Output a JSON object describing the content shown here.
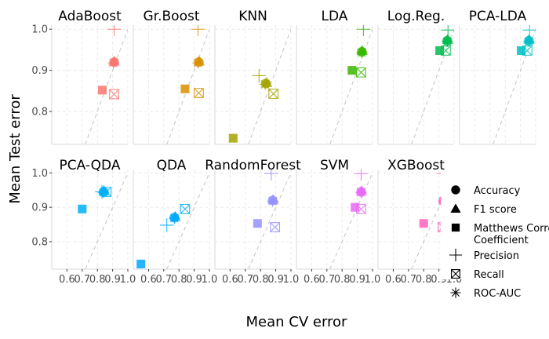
{
  "chart_data": {
    "type": "scatter",
    "xlabel": "Mean CV error",
    "ylabel": "Mean Test error",
    "xlim": [
      0.5,
      1.0
    ],
    "ylim": [
      0.72,
      1.01
    ],
    "x_ticks": [
      "0.6",
      "0.7",
      "0.8",
      "0.9",
      "1.0"
    ],
    "y_ticks": [
      "0.8",
      "0.9",
      "1.0"
    ],
    "grid": true,
    "reference_line": "dashed diagonal y = x",
    "legend_position": "right",
    "metrics": [
      {
        "name": "Accuracy",
        "shape": "circle"
      },
      {
        "name": "F1 score",
        "shape": "triangle"
      },
      {
        "name": "Matthews Correlation\nCoefficient",
        "shape": "square"
      },
      {
        "name": "Precision",
        "shape": "plus"
      },
      {
        "name": "Recall",
        "shape": "square-cross"
      },
      {
        "name": "ROC-AUC",
        "shape": "asterisk"
      }
    ],
    "panels": [
      {
        "label": "AdaBoost",
        "color": "#f8766d",
        "points": [
          {
            "metric": "Accuracy",
            "x": 0.91,
            "y": 0.92
          },
          {
            "metric": "F1 score",
            "x": 0.91,
            "y": 0.922
          },
          {
            "metric": "Matthews Correlation\nCoefficient",
            "x": 0.832,
            "y": 0.852
          },
          {
            "metric": "Precision",
            "x": 0.91,
            "y": 1.0
          },
          {
            "metric": "Recall",
            "x": 0.91,
            "y": 0.842
          },
          {
            "metric": "ROC-AUC",
            "x": 0.905,
            "y": 0.918
          }
        ]
      },
      {
        "label": "Gr.Boost",
        "color": "#d89000",
        "points": [
          {
            "metric": "Accuracy",
            "x": 0.93,
            "y": 0.92
          },
          {
            "metric": "F1 score",
            "x": 0.932,
            "y": 0.922
          },
          {
            "metric": "Matthews Correlation\nCoefficient",
            "x": 0.84,
            "y": 0.855
          },
          {
            "metric": "Precision",
            "x": 0.925,
            "y": 1.0
          },
          {
            "metric": "Recall",
            "x": 0.93,
            "y": 0.845
          },
          {
            "metric": "ROC-AUC",
            "x": 0.925,
            "y": 0.918
          }
        ]
      },
      {
        "label": "KNN",
        "color": "#a3a500",
        "points": [
          {
            "metric": "Accuracy",
            "x": 0.835,
            "y": 0.868
          },
          {
            "metric": "F1 score",
            "x": 0.84,
            "y": 0.87
          },
          {
            "metric": "Matthews Correlation\nCoefficient",
            "x": 0.62,
            "y": 0.735
          },
          {
            "metric": "Precision",
            "x": 0.79,
            "y": 0.887
          },
          {
            "metric": "Recall",
            "x": 0.885,
            "y": 0.843
          },
          {
            "metric": "ROC-AUC",
            "x": 0.83,
            "y": 0.866
          }
        ]
      },
      {
        "label": "LDA",
        "color": "#39b600",
        "points": [
          {
            "metric": "Accuracy",
            "x": 0.93,
            "y": 0.945
          },
          {
            "metric": "F1 score",
            "x": 0.932,
            "y": 0.948
          },
          {
            "metric": "Matthews Correlation\nCoefficient",
            "x": 0.865,
            "y": 0.9
          },
          {
            "metric": "Precision",
            "x": 0.94,
            "y": 1.0
          },
          {
            "metric": "Recall",
            "x": 0.925,
            "y": 0.895
          },
          {
            "metric": "ROC-AUC",
            "x": 0.93,
            "y": 0.943
          }
        ]
      },
      {
        "label": "Log.Reg.",
        "color": "#00bb4e",
        "points": [
          {
            "metric": "Accuracy",
            "x": 0.955,
            "y": 0.972
          },
          {
            "metric": "F1 score",
            "x": 0.957,
            "y": 0.975
          },
          {
            "metric": "Matthews Correlation\nCoefficient",
            "x": 0.905,
            "y": 0.948
          },
          {
            "metric": "Precision",
            "x": 0.96,
            "y": 0.998
          },
          {
            "metric": "Recall",
            "x": 0.945,
            "y": 0.948
          },
          {
            "metric": "ROC-AUC",
            "x": 0.955,
            "y": 0.97
          }
        ]
      },
      {
        "label": "PCA-LDA",
        "color": "#00bfc4",
        "points": [
          {
            "metric": "Accuracy",
            "x": 0.955,
            "y": 0.972
          },
          {
            "metric": "F1 score",
            "x": 0.957,
            "y": 0.975
          },
          {
            "metric": "Matthews Correlation\nCoefficient",
            "x": 0.905,
            "y": 0.948
          },
          {
            "metric": "Precision",
            "x": 0.96,
            "y": 0.998
          },
          {
            "metric": "Recall",
            "x": 0.945,
            "y": 0.948
          },
          {
            "metric": "ROC-AUC",
            "x": 0.955,
            "y": 0.97
          }
        ]
      },
      {
        "label": "PCA-QDA",
        "color": "#00b0f6",
        "points": [
          {
            "metric": "Accuracy",
            "x": 0.84,
            "y": 0.945
          },
          {
            "metric": "F1 score",
            "x": 0.842,
            "y": 0.948
          },
          {
            "metric": "Matthews Correlation\nCoefficient",
            "x": 0.7,
            "y": 0.895
          },
          {
            "metric": "Precision",
            "x": 0.83,
            "y": 0.945
          },
          {
            "metric": "Recall",
            "x": 0.86,
            "y": 0.945
          },
          {
            "metric": "ROC-AUC",
            "x": 0.84,
            "y": 0.943
          }
        ]
      },
      {
        "label": "QDA",
        "color": "#00a9ff",
        "points": [
          {
            "metric": "Accuracy",
            "x": 0.77,
            "y": 0.87
          },
          {
            "metric": "F1 score",
            "x": 0.775,
            "y": 0.873
          },
          {
            "metric": "Matthews Correlation\nCoefficient",
            "x": 0.55,
            "y": 0.735
          },
          {
            "metric": "Precision",
            "x": 0.72,
            "y": 0.848
          },
          {
            "metric": "Recall",
            "x": 0.84,
            "y": 0.895
          },
          {
            "metric": "ROC-AUC",
            "x": 0.77,
            "y": 0.868
          }
        ]
      },
      {
        "label": "RandomForest",
        "color": "#9590ff",
        "points": [
          {
            "metric": "Accuracy",
            "x": 0.88,
            "y": 0.92
          },
          {
            "metric": "F1 score",
            "x": 0.882,
            "y": 0.922
          },
          {
            "metric": "Matthews Correlation\nCoefficient",
            "x": 0.78,
            "y": 0.853
          },
          {
            "metric": "Precision",
            "x": 0.87,
            "y": 0.998
          },
          {
            "metric": "Recall",
            "x": 0.895,
            "y": 0.842
          },
          {
            "metric": "ROC-AUC",
            "x": 0.88,
            "y": 0.918
          }
        ]
      },
      {
        "label": "SVM",
        "color": "#e76bf3",
        "points": [
          {
            "metric": "Accuracy",
            "x": 0.925,
            "y": 0.945
          },
          {
            "metric": "F1 score",
            "x": 0.927,
            "y": 0.948
          },
          {
            "metric": "Matthews Correlation\nCoefficient",
            "x": 0.885,
            "y": 0.9
          },
          {
            "metric": "Precision",
            "x": 0.925,
            "y": 0.998
          },
          {
            "metric": "Recall",
            "x": 0.925,
            "y": 0.895
          },
          {
            "metric": "ROC-AUC",
            "x": 0.925,
            "y": 0.943
          }
        ]
      },
      {
        "label": "XGBoost",
        "color": "#ff62bc",
        "points": [
          {
            "metric": "Accuracy",
            "x": 0.93,
            "y": 0.92
          },
          {
            "metric": "F1 score",
            "x": 0.932,
            "y": 0.922
          },
          {
            "metric": "Matthews Correlation\nCoefficient",
            "x": 0.8,
            "y": 0.853
          },
          {
            "metric": "Precision",
            "x": 0.93,
            "y": 0.998
          },
          {
            "metric": "Recall",
            "x": 0.925,
            "y": 0.842
          },
          {
            "metric": "ROC-AUC",
            "x": 0.93,
            "y": 0.918
          }
        ]
      }
    ]
  }
}
